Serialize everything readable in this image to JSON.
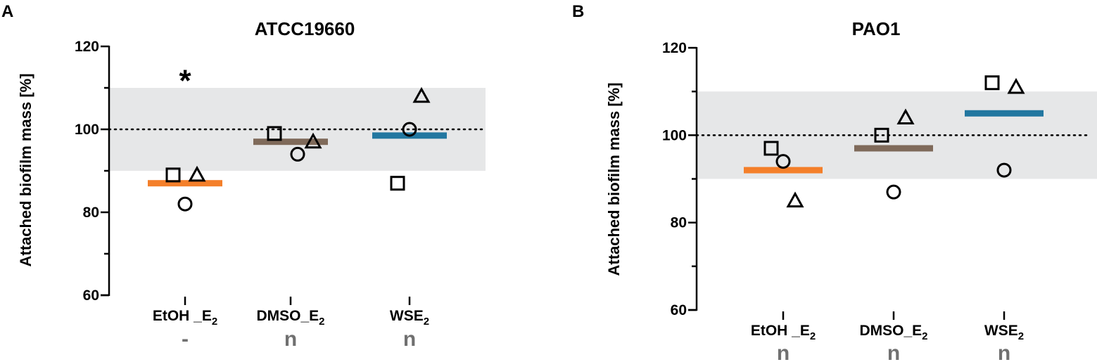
{
  "chart_data": [
    {
      "type": "scatter",
      "panel": "A",
      "title": "ATCC19660",
      "ylabel": "Attached biofilm mass [%]",
      "ylim": [
        60,
        120
      ],
      "yticks": [
        60,
        80,
        100,
        120
      ],
      "reference_line": 100,
      "reference_band": [
        90,
        110
      ],
      "categories": [
        {
          "label": "EtOH _E",
          "sub": "2"
        },
        {
          "label": "DMSO_E",
          "sub": "2"
        },
        {
          "label": "WSE",
          "sub": "2"
        }
      ],
      "means": [
        87,
        97,
        98.5
      ],
      "mean_colors": [
        "#f47f2a",
        "#7f6a5a",
        "#2277a0"
      ],
      "points": [
        {
          "category": 0,
          "marker": "square",
          "y": 89
        },
        {
          "category": 0,
          "marker": "triangle",
          "y": 89
        },
        {
          "category": 0,
          "marker": "circle",
          "y": 82
        },
        {
          "category": 1,
          "marker": "square",
          "y": 99
        },
        {
          "category": 1,
          "marker": "triangle",
          "y": 97
        },
        {
          "category": 1,
          "marker": "circle",
          "y": 94
        },
        {
          "category": 2,
          "marker": "square",
          "y": 87
        },
        {
          "category": 2,
          "marker": "triangle",
          "y": 108
        },
        {
          "category": 2,
          "marker": "circle",
          "y": 100
        }
      ],
      "significance_annotations": [
        {
          "category": 0,
          "text": "*",
          "y": 113
        }
      ],
      "below_labels": [
        "-",
        "n",
        "n"
      ]
    },
    {
      "type": "scatter",
      "panel": "B",
      "title": "PAO1",
      "ylabel": "Attached biofilm mass [%]",
      "ylim": [
        60,
        120
      ],
      "yticks": [
        60,
        80,
        100,
        120
      ],
      "reference_line": 100,
      "reference_band": [
        90,
        110
      ],
      "categories": [
        {
          "label": "EtOH _E",
          "sub": "2"
        },
        {
          "label": "DMSO_E",
          "sub": "2"
        },
        {
          "label": "WSE",
          "sub": "2"
        }
      ],
      "means": [
        92,
        97,
        105
      ],
      "mean_colors": [
        "#f47f2a",
        "#7f6a5a",
        "#2277a0"
      ],
      "points": [
        {
          "category": 0,
          "marker": "square",
          "y": 97
        },
        {
          "category": 0,
          "marker": "triangle",
          "y": 85
        },
        {
          "category": 0,
          "marker": "circle",
          "y": 94
        },
        {
          "category": 1,
          "marker": "square",
          "y": 100
        },
        {
          "category": 1,
          "marker": "triangle",
          "y": 104
        },
        {
          "category": 1,
          "marker": "circle",
          "y": 87
        },
        {
          "category": 2,
          "marker": "square",
          "y": 112
        },
        {
          "category": 2,
          "marker": "triangle",
          "y": 111
        },
        {
          "category": 2,
          "marker": "circle",
          "y": 92
        }
      ],
      "significance_annotations": [],
      "below_labels": [
        "n",
        "n",
        "n"
      ]
    }
  ]
}
